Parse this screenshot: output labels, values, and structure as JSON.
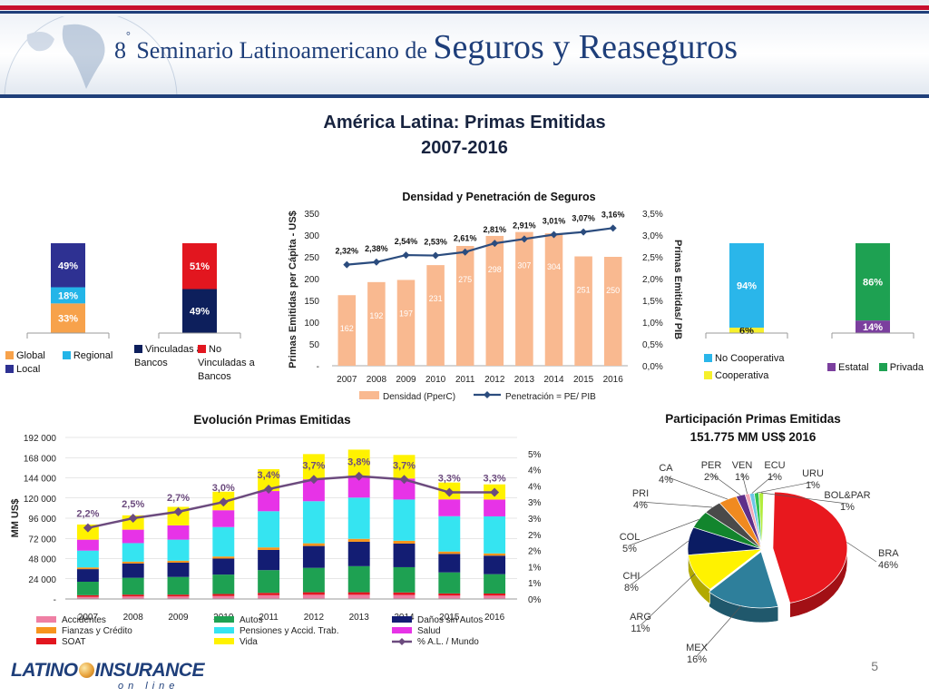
{
  "header": {
    "edition": "8",
    "edition_sup": "°",
    "subtitle": "Seminario Latinoamericano de",
    "title_big": "Seguros y Reaseguros"
  },
  "main_title": {
    "line1": "América Latina: Primas Emitidas",
    "line2": "2007-2016"
  },
  "colors": {
    "global": "#f7a24b",
    "regional": "#23b5e8",
    "local": "#2e3192",
    "vinculadas": "#0d1f5c",
    "no_vinculadas": "#e2161f",
    "no_cooperativa": "#2ab6ea",
    "cooperativa": "#f6f02b",
    "estatal": "#7b3f9e",
    "privada": "#1ea152",
    "densidad": "#f9b990",
    "penetracion": "#2b4c7e",
    "accidentes": "#ef7fa4",
    "fianzas": "#f7941d",
    "soat": "#e2161f",
    "autos": "#1ea152",
    "pensiones": "#35e4f1",
    "vida": "#fff200",
    "danos": "#131d73",
    "salud": "#e733e7",
    "al_mundo": "#6c4b7e"
  },
  "chart_data": [
    {
      "id": "origen",
      "type": "bar",
      "title": "",
      "categories": [
        ""
      ],
      "series": [
        {
          "name": "Global",
          "values": [
            33
          ],
          "label": "33%"
        },
        {
          "name": "Regional",
          "values": [
            18
          ],
          "label": "18%"
        },
        {
          "name": "Local",
          "values": [
            49
          ],
          "label": "49%"
        }
      ]
    },
    {
      "id": "vinculacion",
      "type": "bar",
      "title": "",
      "categories": [
        ""
      ],
      "series": [
        {
          "name": "Vinculadas a Bancos",
          "values": [
            49
          ],
          "label": "49%"
        },
        {
          "name": "No Vinculadas a Bancos",
          "values": [
            51
          ],
          "label": "51%"
        }
      ]
    },
    {
      "id": "densidad_penetracion",
      "type": "bar",
      "title": "Densidad y Penetración de Seguros",
      "categories": [
        "2007",
        "2008",
        "2009",
        "2010",
        "2011",
        "2012",
        "2013",
        "2014",
        "2015",
        "2016"
      ],
      "series": [
        {
          "name": "Densidad (PperC)",
          "type": "bar",
          "axis": "left",
          "values": [
            162,
            192,
            197,
            231,
            275,
            298,
            307,
            304,
            251,
            250
          ],
          "labels": [
            "162",
            "192",
            "197",
            "231",
            "275",
            "298",
            "307",
            "304",
            "251",
            "250"
          ]
        },
        {
          "name": "Penetración = PE/ PIB",
          "type": "line",
          "axis": "right",
          "values": [
            2.32,
            2.38,
            2.54,
            2.53,
            2.61,
            2.81,
            2.91,
            3.01,
            3.07,
            3.16
          ],
          "labels": [
            "2,32%",
            "2,38%",
            "2,54%",
            "2,53%",
            "2,61%",
            "2,81%",
            "2,91%",
            "3,01%",
            "3,07%",
            "3,16%"
          ]
        }
      ],
      "ylabel": "Primas Emitidas per Cápita - US$",
      "y2label": "Primas Emitidas/ PIB",
      "ylim": [
        0,
        350
      ],
      "y2lim": [
        0,
        3.5
      ],
      "yticks": [
        "-",
        "50",
        "100",
        "150",
        "200",
        "250",
        "300",
        "350"
      ],
      "y2ticks": [
        "0,0%",
        "0,5%",
        "1,0%",
        "1,5%",
        "2,0%",
        "2,5%",
        "3,0%",
        "3,5%"
      ],
      "legend_position": "bottom"
    },
    {
      "id": "cooperativa",
      "type": "bar",
      "title": "",
      "categories": [
        ""
      ],
      "series": [
        {
          "name": "Cooperativa",
          "values": [
            6
          ],
          "label": "6%"
        },
        {
          "name": "No Cooperativa",
          "values": [
            94
          ],
          "label": "94%"
        }
      ]
    },
    {
      "id": "estatal_privada",
      "type": "bar",
      "title": "",
      "categories": [
        ""
      ],
      "series": [
        {
          "name": "Estatal",
          "values": [
            14
          ],
          "label": "14%"
        },
        {
          "name": "Privada",
          "values": [
            86
          ],
          "label": "86%"
        }
      ]
    },
    {
      "id": "evolucion",
      "type": "bar",
      "stacked": true,
      "title": "Evolución Primas Emitidas",
      "categories": [
        "2007",
        "2008",
        "2009",
        "2010",
        "2011",
        "2012",
        "2013",
        "2014",
        "2015",
        "2016"
      ],
      "ylabel": "MM US$",
      "ylim": [
        0,
        192000
      ],
      "yticks": [
        "-",
        "24 000",
        "48 000",
        "72 000",
        "96 000",
        "120 000",
        "144 000",
        "168 000",
        "192 000"
      ],
      "y2lim": [
        0,
        5
      ],
      "y2ticks": [
        "0%",
        "1%",
        "1%",
        "2%",
        "2%",
        "3%",
        "3%",
        "4%",
        "4%",
        "5%"
      ],
      "series": [
        {
          "name": "Accidentes",
          "values": [
            2500,
            3000,
            3000,
            3500,
            4500,
            5000,
            5000,
            4800,
            4000,
            4000
          ]
        },
        {
          "name": "SOAT",
          "values": [
            2000,
            2200,
            2200,
            2500,
            2800,
            3000,
            3000,
            3000,
            2600,
            2500
          ]
        },
        {
          "name": "Autos",
          "values": [
            16000,
            20000,
            21000,
            23000,
            27000,
            29000,
            31000,
            30000,
            25000,
            23000
          ]
        },
        {
          "name": "Daños sin Autos",
          "values": [
            15000,
            17000,
            17000,
            19000,
            24000,
            26000,
            29000,
            28000,
            22000,
            22000
          ]
        },
        {
          "name": "Fianzas y Crédito",
          "values": [
            2000,
            2200,
            2300,
            2500,
            3000,
            3200,
            3500,
            3400,
            2800,
            2700
          ]
        },
        {
          "name": "Pensiones y Accid. Trab.",
          "values": [
            20000,
            22000,
            25000,
            35000,
            43000,
            50000,
            49000,
            49000,
            42000,
            44000
          ]
        },
        {
          "name": "Salud",
          "values": [
            13000,
            16000,
            17000,
            20000,
            24000,
            26000,
            26000,
            25000,
            20000,
            20000
          ]
        },
        {
          "name": "Vida",
          "values": [
            18000,
            17000,
            22000,
            22000,
            26000,
            30000,
            31000,
            28000,
            20000,
            18000
          ]
        },
        {
          "name": "% A.L. / Mundo",
          "type": "line",
          "axis": "right",
          "values": [
            2.2,
            2.5,
            2.7,
            3.0,
            3.4,
            3.7,
            3.8,
            3.7,
            3.3,
            3.3
          ],
          "labels": [
            "2,2%",
            "2,5%",
            "2,7%",
            "3,0%",
            "3,4%",
            "3,7%",
            "3,8%",
            "3,7%",
            "3,3%",
            "3,3%"
          ]
        }
      ],
      "legend_position": "bottom"
    },
    {
      "id": "participacion",
      "type": "pie",
      "title": "Participación Primas Emitidas",
      "subtitle": "151.775 MM US$  2016",
      "slices": [
        {
          "name": "BRA",
          "value": 46,
          "label": "46%",
          "color": "#e8181e"
        },
        {
          "name": "MEX",
          "value": 16,
          "label": "16%",
          "color": "#2e7f9b"
        },
        {
          "name": "ARG",
          "value": 11,
          "label": "11%",
          "color": "#fff200"
        },
        {
          "name": "CHI",
          "value": 8,
          "label": "8%",
          "color": "#0b1c63"
        },
        {
          "name": "COL",
          "value": 5,
          "label": "5%",
          "color": "#12852d"
        },
        {
          "name": "PRI",
          "value": 4,
          "label": "4%",
          "color": "#4a4a4a"
        },
        {
          "name": "CA",
          "value": 4,
          "label": "4%",
          "color": "#f08a20"
        },
        {
          "name": "PER",
          "value": 2,
          "label": "2%",
          "color": "#5e2f8a"
        },
        {
          "name": "VEN",
          "value": 1,
          "label": "1%",
          "color": "#f4a6b5"
        },
        {
          "name": "ECU",
          "value": 1,
          "label": "1%",
          "color": "#6ec6e8"
        },
        {
          "name": "URU",
          "value": 1,
          "label": "1%",
          "color": "#32c24d"
        },
        {
          "name": "BOL&PAR",
          "value": 1,
          "label": "1%",
          "color": "#b2ec3c"
        }
      ]
    }
  ],
  "legends": {
    "origen": [
      "Global",
      "Regional",
      "Local"
    ],
    "vinculacion": [
      "Vinculadas a Bancos",
      "No Vinculadas a Bancos"
    ],
    "cooperativa": [
      "No Cooperativa",
      "Cooperativa"
    ],
    "estatal": [
      "Estatal",
      "Privada"
    ]
  },
  "footer": {
    "logo_main_a": "LATINO",
    "logo_main_b": "INSURANCE",
    "logo_sub": "on line",
    "page": "5"
  }
}
